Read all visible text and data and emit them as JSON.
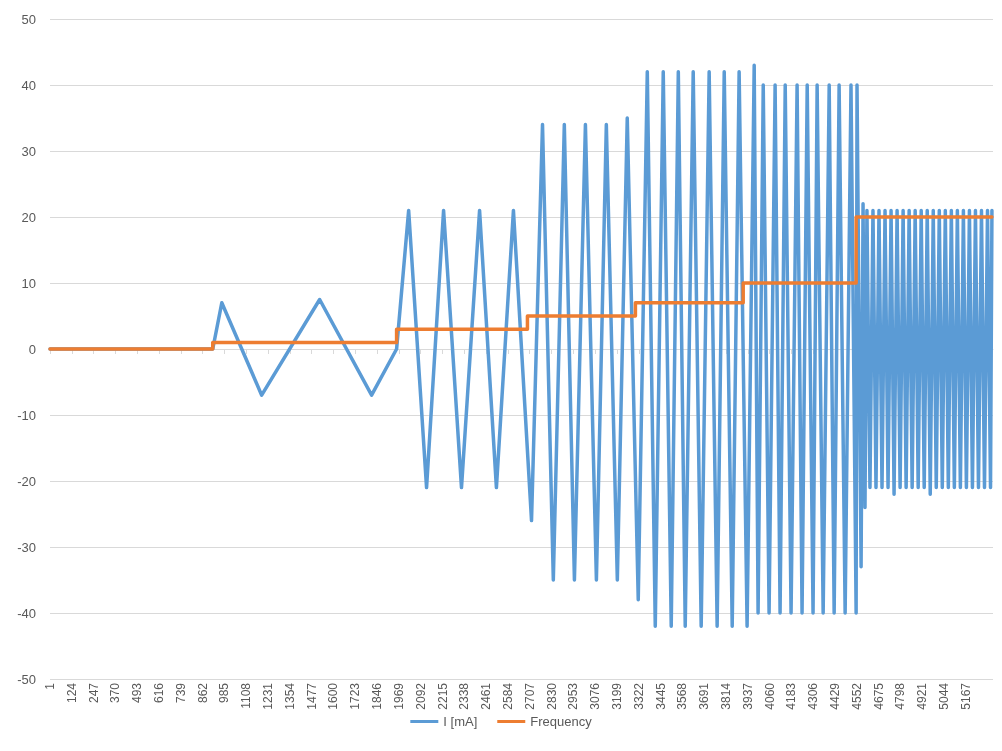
{
  "chart_data": {
    "type": "line",
    "xlim": [
      1,
      5320
    ],
    "xticks": [
      1,
      124,
      247,
      370,
      493,
      616,
      739,
      862,
      985,
      1108,
      1231,
      1354,
      1477,
      1600,
      1723,
      1846,
      1969,
      2092,
      2215,
      2338,
      2461,
      2584,
      2707,
      2830,
      2953,
      3076,
      3199,
      3322,
      3445,
      3568,
      3691,
      3814,
      3937,
      4060,
      4183,
      4306,
      4429,
      4552,
      4675,
      4798,
      4921,
      5044,
      5167
    ],
    "ylim": [
      -50,
      50
    ],
    "yticks": [
      -50,
      -40,
      -30,
      -20,
      -10,
      0,
      10,
      20,
      30,
      40,
      50
    ],
    "grid": "y",
    "legend": "bottom",
    "marker": "none",
    "series": [
      {
        "name": "I [mA]",
        "type": "line",
        "color": "#5b9bd5",
        "x": [
          1,
          919,
          970,
          1195,
          1522,
          1815,
          1956,
          2024,
          2125,
          2221,
          2322,
          2424,
          2519,
          2615,
          2717,
          2779,
          2840,
          2902,
          2959,
          3021,
          3083,
          3139,
          3201,
          3257,
          3319,
          3370,
          3415,
          3460,
          3505,
          3545,
          3584,
          3629,
          3674,
          3719,
          3764,
          3804,
          3849,
          3888,
          3933,
          3973,
          3995,
          4024,
          4057,
          4091,
          4119,
          4148,
          4181,
          4215,
          4243,
          4272,
          4305,
          4328,
          4362,
          4396,
          4424,
          4452,
          4486,
          4519,
          4548,
          4553,
          4576,
          4587,
          4598,
          4609,
          4626,
          4643,
          4660,
          4677,
          4694,
          4711,
          4728,
          4745,
          4762,
          4779,
          4796,
          4813,
          4830,
          4847,
          4864,
          4881,
          4898,
          4915,
          4932,
          4949,
          4966,
          4983,
          5000,
          5017,
          5034,
          5051,
          5068,
          5085,
          5102,
          5119,
          5136,
          5153,
          5170,
          5187,
          5204,
          5221,
          5238,
          5255,
          5272,
          5289,
          5306,
          5314
        ],
        "values": [
          0,
          0,
          7,
          -7,
          7.5,
          -7,
          0,
          21,
          -21,
          21,
          -21,
          21,
          -21,
          21,
          -26,
          34,
          -35,
          34,
          -35,
          34,
          -35,
          34,
          -35,
          35,
          -38,
          42,
          -42,
          42,
          -42,
          42,
          -42,
          42,
          -42,
          42,
          -42,
          42,
          -42,
          42,
          -42,
          43,
          -40,
          40,
          -40,
          40,
          -40,
          40,
          -40,
          40,
          -40,
          40,
          -40,
          40,
          -40,
          40,
          -40,
          40,
          -40,
          40,
          -40,
          40,
          -33,
          22,
          -24,
          21,
          -21,
          21,
          -21,
          21,
          -21,
          21,
          -21,
          21,
          -22,
          21,
          -21,
          21,
          -21,
          21,
          -21,
          21,
          -21,
          21,
          -21,
          21,
          -22,
          21,
          -21,
          21,
          -21,
          21,
          -21,
          21,
          -21,
          21,
          -21,
          21,
          -21,
          21,
          -21,
          21,
          -21,
          21,
          -21,
          21,
          -21,
          21
        ]
      },
      {
        "name": "Frequency",
        "type": "step",
        "color": "#ed7d31",
        "x": [
          1,
          919,
          1956,
          2694,
          3303,
          3911,
          4548,
          5314
        ],
        "values": [
          0,
          1,
          3,
          5,
          7,
          10,
          20,
          20
        ]
      }
    ]
  }
}
